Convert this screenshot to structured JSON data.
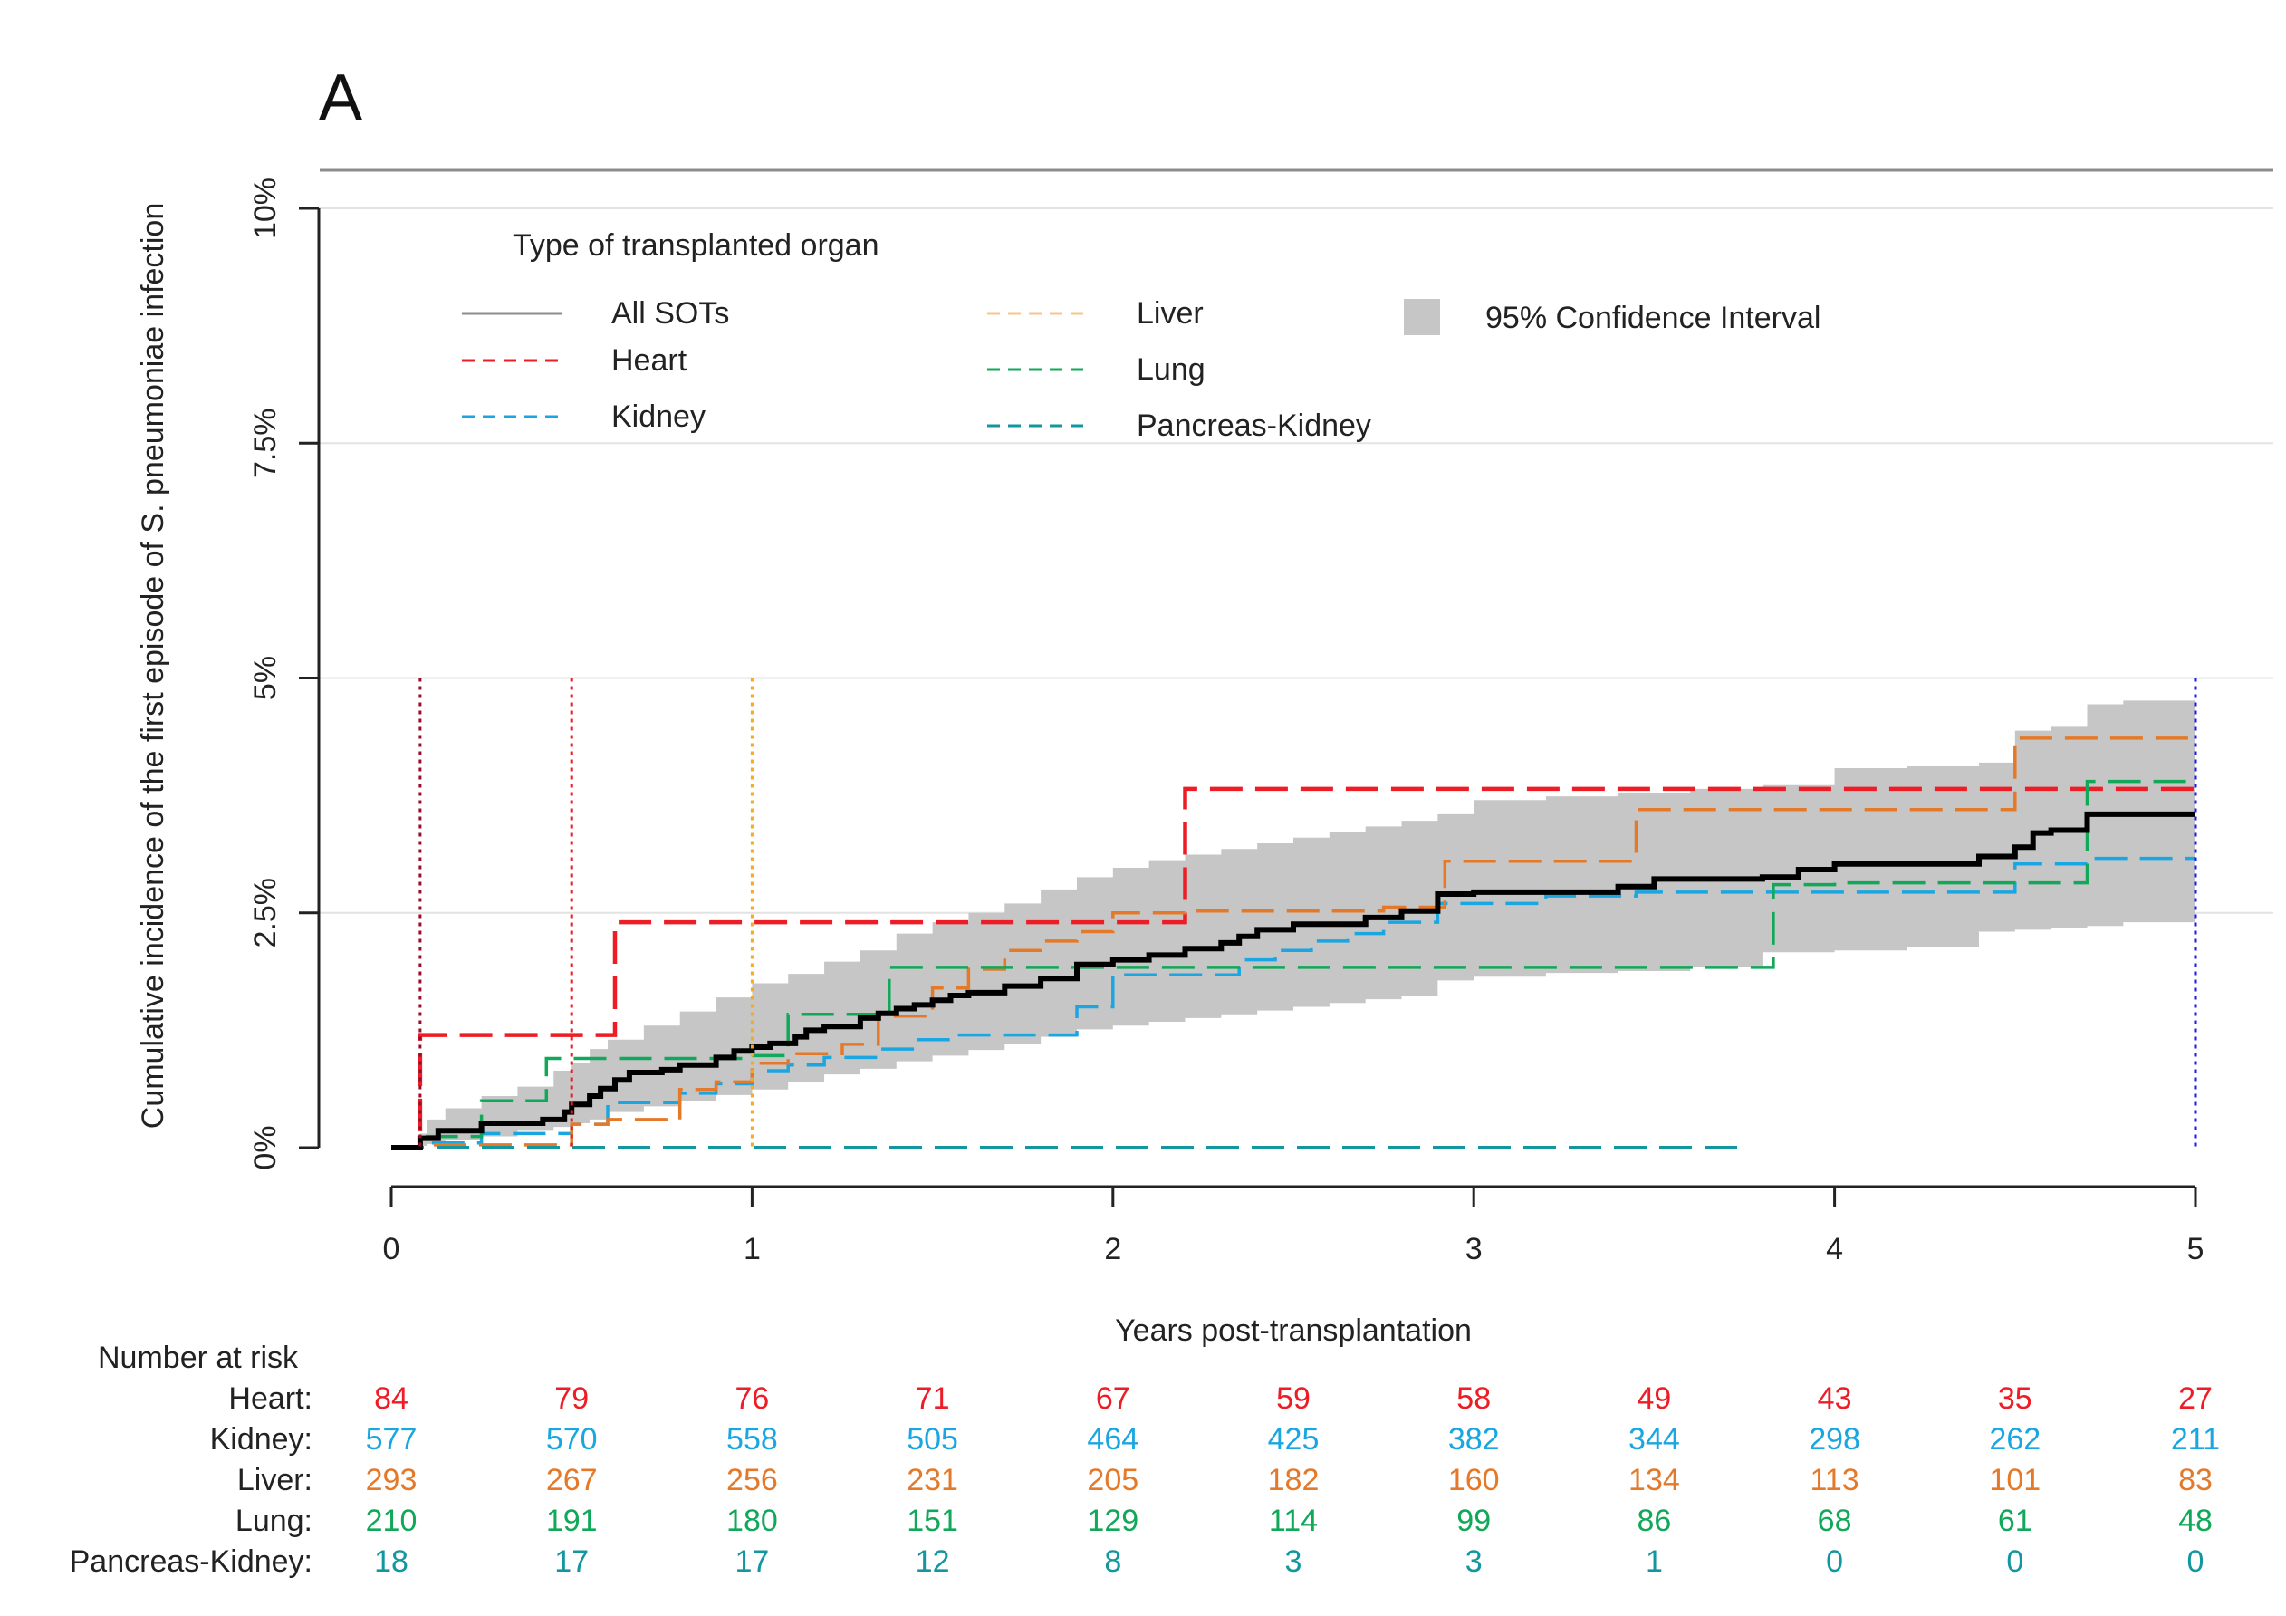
{
  "panel_label": "A",
  "colors": {
    "all": "#000000",
    "heart": "#ee1c25",
    "kidney": "#1aa6e0",
    "liver": "#e5792a",
    "lung": "#12a85a",
    "pancreas_kidney": "#13979f",
    "ci": "#c6c6c6",
    "grid": "#e3e3e3",
    "axis": "#222222"
  },
  "legend": {
    "title": "Type of transplanted organ",
    "entries": [
      {
        "key": "all",
        "label": "All SOTs",
        "color": "#8c8c8c",
        "dash": "solid"
      },
      {
        "key": "heart",
        "label": "Heart",
        "color": "#ee1c25",
        "dash": "dashed"
      },
      {
        "key": "kidney",
        "label": "Kidney",
        "color": "#1aa6e0",
        "dash": "dashed"
      },
      {
        "key": "liver",
        "label": "Liver",
        "color": "#f8c48a",
        "dash": "dashed"
      },
      {
        "key": "lung",
        "label": "Lung",
        "color": "#12a85a",
        "dash": "dashed"
      },
      {
        "key": "pancreas_kidney",
        "label": "Pancreas-Kidney",
        "color": "#13979f",
        "dash": "dashed"
      }
    ],
    "ci_label": "95% Confidence Interval"
  },
  "chart_data": {
    "type": "line",
    "step": true,
    "title": "A",
    "xlabel": "Years post-transplantation",
    "ylabel": "Cumulative incidence of the first episode of S. pneumoniae infection",
    "xlim": [
      0,
      5
    ],
    "ylim": [
      0,
      10
    ],
    "x_ticks": [
      0,
      1,
      2,
      3,
      4,
      5
    ],
    "x_tick_labels": [
      "0",
      "1",
      "2",
      "3",
      "4",
      "5"
    ],
    "y_ticks": [
      0,
      2.5,
      5,
      7.5,
      10
    ],
    "y_tick_labels": [
      "0%",
      "2.5%",
      "5%",
      "7.5%",
      "10%"
    ],
    "grid": true,
    "vlines": [
      {
        "x": 0.08,
        "color": "#9b0d2a",
        "y_top": 5
      },
      {
        "x": 0.5,
        "color": "#ee1c25",
        "y_top": 5
      },
      {
        "x": 1.0,
        "color": "#f4a92a",
        "y_top": 5
      },
      {
        "x": 5.0,
        "color": "#1a1aee",
        "y_top": 5
      }
    ],
    "ci_band": {
      "x": [
        0,
        0.08,
        0.1,
        0.15,
        0.25,
        0.35,
        0.45,
        0.5,
        0.55,
        0.6,
        0.7,
        0.8,
        0.9,
        1.0,
        1.1,
        1.2,
        1.3,
        1.4,
        1.5,
        1.6,
        1.7,
        1.8,
        1.9,
        2.0,
        2.1,
        2.2,
        2.3,
        2.4,
        2.5,
        2.6,
        2.7,
        2.8,
        2.9,
        3.0,
        3.2,
        3.4,
        3.6,
        3.8,
        4.0,
        4.2,
        4.4,
        4.5,
        4.6,
        4.7,
        4.8,
        5.0
      ],
      "lower": [
        0,
        0,
        0.02,
        0.04,
        0.08,
        0.12,
        0.18,
        0.22,
        0.26,
        0.3,
        0.38,
        0.44,
        0.5,
        0.56,
        0.62,
        0.7,
        0.78,
        0.84,
        0.92,
        0.98,
        1.04,
        1.1,
        1.18,
        1.26,
        1.3,
        1.34,
        1.38,
        1.42,
        1.46,
        1.5,
        1.54,
        1.58,
        1.62,
        1.78,
        1.82,
        1.86,
        1.88,
        1.92,
        2.08,
        2.1,
        2.14,
        2.3,
        2.32,
        2.34,
        2.36,
        2.4
      ],
      "upper": [
        0,
        0.15,
        0.3,
        0.42,
        0.55,
        0.65,
        0.82,
        0.9,
        1.05,
        1.15,
        1.3,
        1.45,
        1.6,
        1.75,
        1.85,
        1.98,
        2.1,
        2.28,
        2.4,
        2.5,
        2.6,
        2.75,
        2.88,
        2.98,
        3.06,
        3.12,
        3.18,
        3.24,
        3.3,
        3.36,
        3.42,
        3.48,
        3.55,
        3.7,
        3.74,
        3.78,
        3.82,
        3.86,
        4.04,
        4.06,
        4.1,
        4.44,
        4.48,
        4.72,
        4.76,
        4.8
      ]
    },
    "series": [
      {
        "name": "All SOTs",
        "key": "all",
        "dash": "solid",
        "width": 6,
        "x": [
          0,
          0.08,
          0.13,
          0.25,
          0.3,
          0.42,
          0.48,
          0.5,
          0.55,
          0.58,
          0.62,
          0.66,
          0.7,
          0.75,
          0.8,
          0.9,
          0.95,
          1.0,
          1.05,
          1.08,
          1.12,
          1.15,
          1.2,
          1.3,
          1.35,
          1.4,
          1.45,
          1.5,
          1.55,
          1.6,
          1.7,
          1.8,
          1.9,
          2.0,
          2.1,
          2.2,
          2.3,
          2.35,
          2.4,
          2.5,
          2.6,
          2.7,
          2.8,
          2.9,
          3.0,
          3.2,
          3.4,
          3.5,
          3.7,
          3.8,
          3.9,
          4.0,
          4.2,
          4.4,
          4.5,
          4.55,
          4.6,
          4.7,
          5.0
        ],
        "y": [
          0,
          0.1,
          0.18,
          0.26,
          0.26,
          0.3,
          0.38,
          0.46,
          0.55,
          0.63,
          0.72,
          0.8,
          0.8,
          0.83,
          0.88,
          0.96,
          1.03,
          1.07,
          1.11,
          1.11,
          1.18,
          1.25,
          1.29,
          1.38,
          1.43,
          1.48,
          1.52,
          1.57,
          1.62,
          1.65,
          1.72,
          1.8,
          1.95,
          2.0,
          2.05,
          2.12,
          2.18,
          2.25,
          2.32,
          2.38,
          2.38,
          2.45,
          2.52,
          2.7,
          2.72,
          2.72,
          2.78,
          2.86,
          2.86,
          2.88,
          2.96,
          3.02,
          3.02,
          3.1,
          3.2,
          3.35,
          3.38,
          3.55,
          3.55
        ]
      },
      {
        "name": "Heart",
        "key": "heart",
        "dash": "dashed",
        "width": 4.5,
        "x": [
          0,
          0.08,
          0.62,
          2.2,
          5.0
        ],
        "y": [
          0,
          1.2,
          2.4,
          3.82,
          3.82
        ]
      },
      {
        "name": "Kidney",
        "key": "kidney",
        "dash": "dashed",
        "width": 3.5,
        "x": [
          0,
          0.08,
          0.25,
          0.5,
          0.6,
          0.8,
          0.9,
          1.0,
          1.1,
          1.2,
          1.35,
          1.45,
          1.55,
          1.65,
          1.75,
          1.85,
          1.9,
          2.0,
          2.1,
          2.35,
          2.45,
          2.55,
          2.65,
          2.75,
          2.9,
          3.0,
          3.2,
          3.45,
          3.55,
          3.85,
          4.0,
          4.2,
          4.4,
          4.5,
          4.7,
          5.0
        ],
        "y": [
          0,
          0.05,
          0.15,
          0.25,
          0.48,
          0.58,
          0.68,
          0.82,
          0.88,
          0.96,
          1.05,
          1.15,
          1.2,
          1.2,
          1.2,
          1.2,
          1.5,
          1.84,
          1.84,
          2.0,
          2.1,
          2.2,
          2.28,
          2.4,
          2.6,
          2.6,
          2.68,
          2.72,
          2.72,
          2.72,
          2.72,
          2.72,
          2.72,
          3.02,
          3.08,
          3.08
        ]
      },
      {
        "name": "Liver",
        "key": "liver",
        "dash": "dashed",
        "width": 3.5,
        "x": [
          0,
          0.08,
          0.5,
          0.6,
          0.8,
          0.9,
          1.0,
          1.1,
          1.25,
          1.35,
          1.5,
          1.6,
          1.7,
          1.8,
          1.9,
          2.0,
          2.2,
          2.5,
          2.75,
          2.92,
          3.2,
          3.45,
          3.7,
          4.0,
          4.3,
          4.5,
          5.0
        ],
        "y": [
          0,
          0.03,
          0.25,
          0.3,
          0.62,
          0.7,
          0.9,
          1.0,
          1.1,
          1.4,
          1.7,
          1.9,
          2.1,
          2.2,
          2.3,
          2.5,
          2.52,
          2.52,
          2.56,
          3.05,
          3.05,
          3.6,
          3.6,
          3.6,
          3.6,
          4.36,
          4.36
        ]
      },
      {
        "name": "Lung",
        "key": "lung",
        "dash": "dashed",
        "width": 3.5,
        "x": [
          0,
          0.08,
          0.1,
          0.25,
          0.35,
          0.43,
          0.5,
          0.75,
          1.0,
          1.1,
          1.2,
          1.38,
          1.5,
          1.75,
          1.9,
          2.0,
          2.2,
          2.5,
          3.0,
          3.5,
          3.83,
          4.0,
          4.3,
          4.7,
          5.0
        ],
        "y": [
          0,
          0.03,
          0.12,
          0.5,
          0.5,
          0.95,
          0.95,
          0.95,
          0.98,
          1.42,
          1.42,
          1.92,
          1.92,
          1.92,
          1.92,
          1.92,
          1.92,
          1.92,
          1.92,
          1.92,
          2.8,
          2.82,
          2.82,
          3.9,
          3.9
        ]
      },
      {
        "name": "Pancreas-Kidney",
        "key": "pancreas_kidney",
        "dash": "dashed",
        "width": 4,
        "x": [
          0,
          3.75
        ],
        "y": [
          0,
          0
        ]
      }
    ]
  },
  "risk_table": {
    "title": "Number at risk",
    "times": [
      0,
      0.5,
      1,
      1.5,
      2,
      2.5,
      3,
      3.5,
      4,
      4.5,
      5
    ],
    "rows": [
      {
        "key": "heart",
        "label": "Heart:",
        "color": "#ee1c25",
        "values": [
          "84",
          "79",
          "76",
          "71",
          "67",
          "59",
          "58",
          "49",
          "43",
          "35",
          "27"
        ]
      },
      {
        "key": "kidney",
        "label": "Kidney:",
        "color": "#1aa6e0",
        "values": [
          "577",
          "570",
          "558",
          "505",
          "464",
          "425",
          "382",
          "344",
          "298",
          "262",
          "211"
        ]
      },
      {
        "key": "liver",
        "label": "Liver:",
        "color": "#e5792a",
        "values": [
          "293",
          "267",
          "256",
          "231",
          "205",
          "182",
          "160",
          "134",
          "113",
          "101",
          "83"
        ]
      },
      {
        "key": "lung",
        "label": "Lung:",
        "color": "#12a85a",
        "values": [
          "210",
          "191",
          "180",
          "151",
          "129",
          "114",
          "99",
          "86",
          "68",
          "61",
          "48"
        ]
      },
      {
        "key": "pancreas_kidney",
        "label": "Pancreas-Kidney:",
        "color": "#13979f",
        "values": [
          "18",
          "17",
          "17",
          "12",
          "8",
          "3",
          "3",
          "1",
          "0",
          "0",
          "0"
        ]
      }
    ]
  }
}
